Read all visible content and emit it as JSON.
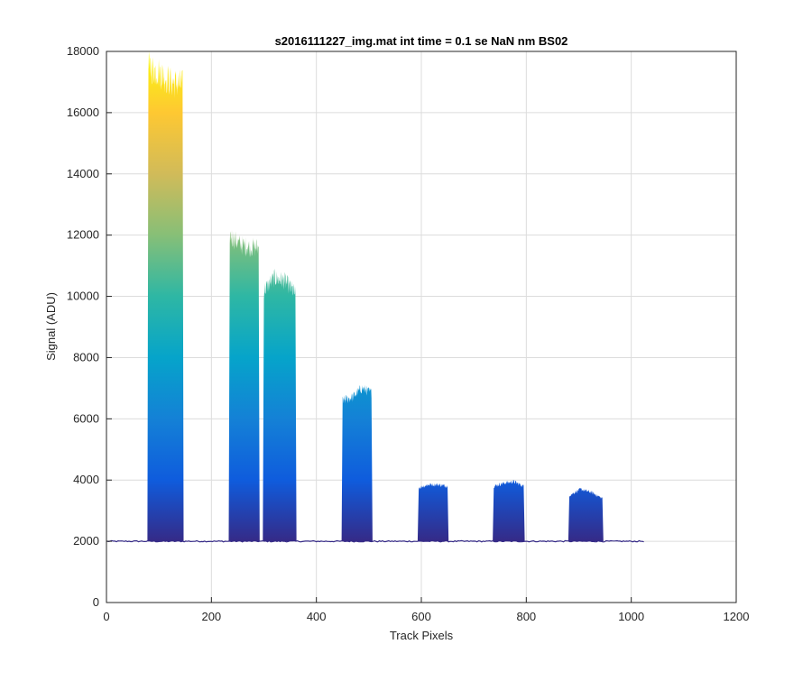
{
  "chart_data": {
    "type": "area",
    "title": "s2016111227_img.mat int time = 0.1 se  NaN nm BS02",
    "xlabel": "Track Pixels",
    "ylabel": "Signal (ADU)",
    "xlim": [
      0,
      1200
    ],
    "ylim": [
      0,
      18000
    ],
    "xticks": [
      "0",
      "200",
      "400",
      "600",
      "800",
      "1000",
      "1200"
    ],
    "yticks": [
      "0",
      "2000",
      "4000",
      "6000",
      "8000",
      "10000",
      "12000",
      "14000",
      "16000",
      "18000"
    ],
    "grid": true,
    "baseline": 2000,
    "x_extent": [
      1,
      1024
    ],
    "colormap": [
      "#352a87",
      "#0f5cdd",
      "#1481d6",
      "#06a4ca",
      "#2eb7a4",
      "#87bf77",
      "#d1bb59",
      "#fec832",
      "#f9fb0e"
    ],
    "peaks": [
      {
        "x_start": 80,
        "x_end": 145,
        "plateau": [
          17500,
          17300,
          17000,
          16900
        ]
      },
      {
        "x_start": 235,
        "x_end": 290,
        "plateau": [
          12000,
          11700,
          11600,
          11600
        ]
      },
      {
        "x_start": 300,
        "x_end": 360,
        "plateau": [
          10200,
          10600,
          10500,
          10100
        ]
      },
      {
        "x_start": 450,
        "x_end": 505,
        "plateau": [
          6600,
          6700,
          7000,
          6850
        ]
      },
      {
        "x_start": 595,
        "x_end": 650,
        "plateau": [
          3750,
          3850,
          3850,
          3800
        ]
      },
      {
        "x_start": 738,
        "x_end": 795,
        "plateau": [
          3800,
          3900,
          3950,
          3800
        ]
      },
      {
        "x_start": 882,
        "x_end": 945,
        "plateau": [
          3500,
          3700,
          3600,
          3400
        ]
      }
    ]
  }
}
